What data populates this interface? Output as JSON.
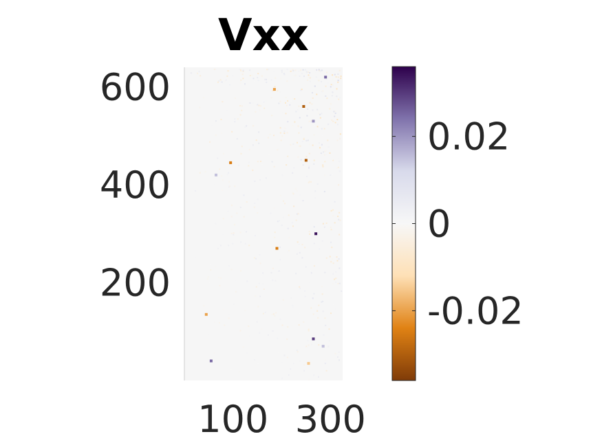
{
  "chart_data": {
    "type": "heatmap",
    "title": "Vxx",
    "x_ticks": [
      {
        "value": 100,
        "label": "100"
      },
      {
        "value": 300,
        "label": "300"
      }
    ],
    "y_ticks": [
      {
        "value": 200,
        "label": "200"
      },
      {
        "value": 400,
        "label": "400"
      },
      {
        "value": 600,
        "label": "600"
      }
    ],
    "xlim": [
      0,
      325
    ],
    "ylim": [
      0,
      640
    ],
    "colorbar": {
      "ticks": [
        {
          "value": 0.02,
          "label": "0.02"
        },
        {
          "value": 0,
          "label": "0"
        },
        {
          "value": -0.02,
          "label": "-0.02"
        }
      ],
      "clim": [
        -0.036,
        0.036
      ],
      "colormap": "orange-white-purple (PuOr)",
      "colors": [
        "#7f3b08",
        "#e08214",
        "#fee0b6",
        "#f7f7f7",
        "#d8daeb",
        "#8073ac",
        "#2d004b"
      ]
    },
    "background_color": "#f6f6f6",
    "grid": false,
    "features": [
      {
        "x": 270,
        "y": 300,
        "value": 0.034
      },
      {
        "x": 265,
        "y": 85,
        "value": 0.03
      },
      {
        "x": 55,
        "y": 40,
        "value": 0.025
      },
      {
        "x": 190,
        "y": 270,
        "value": -0.025
      },
      {
        "x": 45,
        "y": 135,
        "value": -0.02
      },
      {
        "x": 95,
        "y": 445,
        "value": -0.025
      },
      {
        "x": 65,
        "y": 420,
        "value": 0.015
      },
      {
        "x": 250,
        "y": 450,
        "value": -0.03
      },
      {
        "x": 245,
        "y": 560,
        "value": -0.03
      },
      {
        "x": 265,
        "y": 530,
        "value": 0.02
      },
      {
        "x": 185,
        "y": 595,
        "value": -0.02
      },
      {
        "x": 290,
        "y": 620,
        "value": 0.025
      },
      {
        "x": 255,
        "y": 35,
        "value": -0.015
      },
      {
        "x": 285,
        "y": 70,
        "value": 0.015
      }
    ]
  }
}
